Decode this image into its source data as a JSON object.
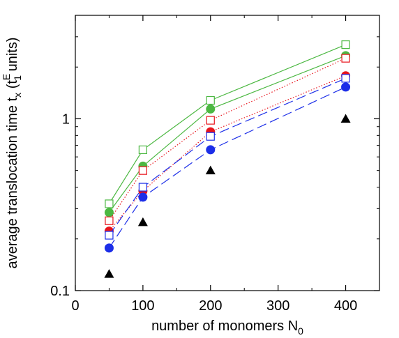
{
  "chart_data": {
    "type": "line",
    "title": "",
    "xlabel": {
      "main": "number of monomers N",
      "sub": "0"
    },
    "ylabel": {
      "main": "average translocation time t",
      "sub1": "x",
      "mid": " (t",
      "sup": "E",
      "sub2": "1",
      "tail": " units)"
    },
    "xlim": [
      0,
      450
    ],
    "ylim": [
      0.1,
      4.0
    ],
    "yscale": "log",
    "x_ticks": [
      0,
      100,
      200,
      300,
      400
    ],
    "y_ticks": [
      {
        "value": 0.1,
        "label": "0.1"
      },
      {
        "value": 1,
        "label": "1"
      }
    ],
    "grid": false,
    "legend": "none",
    "series": [
      {
        "marker": "open-square",
        "color": "#4cb842",
        "line": "solid",
        "x": [
          50,
          100,
          200,
          400
        ],
        "y": [
          0.32,
          0.66,
          1.28,
          2.7
        ]
      },
      {
        "marker": "filled-circle",
        "color": "#4cb842",
        "line": "solid",
        "x": [
          50,
          100,
          200,
          400
        ],
        "y": [
          0.285,
          0.53,
          1.14,
          2.33
        ]
      },
      {
        "marker": "open-square",
        "color": "#e8141c",
        "line": "dotted",
        "x": [
          50,
          100,
          200,
          400
        ],
        "y": [
          0.255,
          0.5,
          0.98,
          2.25
        ]
      },
      {
        "marker": "filled-circle",
        "color": "#e8141c",
        "line": "dotted",
        "x": [
          50,
          100,
          200,
          400
        ],
        "y": [
          0.222,
          0.38,
          0.84,
          1.78
        ]
      },
      {
        "marker": "open-square",
        "color": "#1c2ee8",
        "line": "dashed",
        "x": [
          50,
          100,
          200,
          400
        ],
        "y": [
          0.21,
          0.4,
          0.79,
          1.72
        ]
      },
      {
        "marker": "filled-circle",
        "color": "#1c2ee8",
        "line": "dashed",
        "x": [
          50,
          100,
          200,
          400
        ],
        "y": [
          0.177,
          0.35,
          0.66,
          1.53
        ]
      },
      {
        "marker": "filled-triangle",
        "color": "#000000",
        "line": "none",
        "x": [
          50,
          100,
          200,
          400
        ],
        "y": [
          0.125,
          0.25,
          0.5,
          1.0
        ]
      }
    ]
  }
}
